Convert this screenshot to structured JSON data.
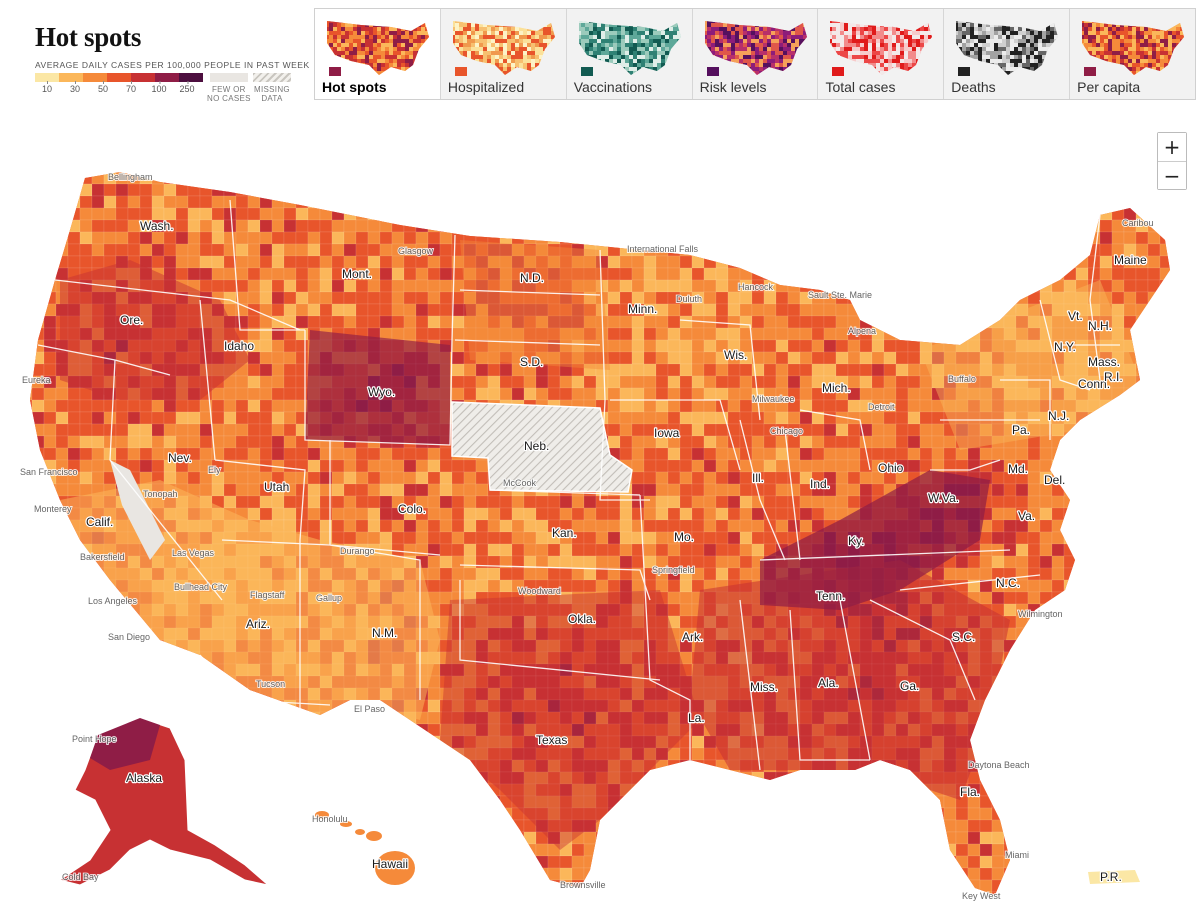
{
  "header": {
    "title": "Hot spots",
    "legend_caption": "AVERAGE DAILY CASES PER 100,000 PEOPLE IN PAST WEEK",
    "legend_colors": [
      "#fbe7a5",
      "#fbb75a",
      "#f58a3a",
      "#e8552b",
      "#c73133",
      "#8f1d46",
      "#4d0f3f"
    ],
    "legend_ticks": [
      "10",
      "30",
      "50",
      "70",
      "100",
      "250"
    ],
    "few_cases_label": [
      "FEW OR",
      "NO CASES"
    ],
    "missing_data_label": [
      "MISSING",
      "DATA"
    ]
  },
  "tabs": [
    {
      "label": "Hot spots",
      "active": true,
      "palette": [
        "#fbb75a",
        "#f58a3a",
        "#e8552b",
        "#c73133",
        "#8f1d46"
      ],
      "background": "#ffffff"
    },
    {
      "label": "Hospitalized",
      "active": false,
      "palette": [
        "#fdf3c6",
        "#fbe19a",
        "#f7c070",
        "#f0994d",
        "#e8552b"
      ],
      "background": "#f2f2f2"
    },
    {
      "label": "Vaccinations",
      "active": false,
      "palette": [
        "#dfeee8",
        "#9ccbbc",
        "#5ea899",
        "#2f8174",
        "#125b52"
      ],
      "background": "#f2f2f2"
    },
    {
      "label": "Risk levels",
      "active": false,
      "palette": [
        "#f6a15a",
        "#e0574a",
        "#b8306a",
        "#8d1c7a",
        "#55105e"
      ],
      "background": "#f2f2f2"
    },
    {
      "label": "Total cases",
      "active": false,
      "palette": [
        "#f3e9e9",
        "#f7caca",
        "#f28b8b",
        "#ec4747",
        "#e01b1b"
      ],
      "background": "#f2f2f2"
    },
    {
      "label": "Deaths",
      "active": false,
      "palette": [
        "#ececec",
        "#cfcfcf",
        "#a2a2a2",
        "#666666",
        "#222222"
      ],
      "background": "#f2f2f2"
    },
    {
      "label": "Per capita",
      "active": false,
      "palette": [
        "#fbb75a",
        "#f58a3a",
        "#e8552b",
        "#c73133",
        "#8f1d46"
      ],
      "background": "#f2f2f2"
    }
  ],
  "zoom": {
    "in_label": "+",
    "out_label": "−"
  },
  "map": {
    "colors": {
      "few": "#e9e6e2",
      "missing": "#d7d4cf",
      "border": "#ffffff"
    },
    "regions": [
      {
        "name": "contiguous-us",
        "category": "cases",
        "level": 3
      },
      {
        "name": "alaska",
        "category": "cases",
        "level": 5
      },
      {
        "name": "hawaii",
        "category": "cases",
        "level": 2
      },
      {
        "name": "puerto-rico",
        "category": "cases",
        "level": 0
      },
      {
        "name": "nebraska",
        "category": "missing",
        "level": null
      },
      {
        "name": "southeast-hotspot",
        "category": "cases",
        "level": 4
      },
      {
        "name": "tennessee-kentucky-core",
        "category": "cases",
        "level": 5
      },
      {
        "name": "wyoming-core",
        "category": "cases",
        "level": 5
      },
      {
        "name": "northwest-hotspot",
        "category": "cases",
        "level": 4
      },
      {
        "name": "southwest-region",
        "category": "cases",
        "level": 1
      },
      {
        "name": "plains-region",
        "category": "cases",
        "level": 2
      },
      {
        "name": "northeast-region",
        "category": "cases",
        "level": 1
      },
      {
        "name": "texas-hotspot",
        "category": "cases",
        "level": 4
      },
      {
        "name": "nevada-few-cases",
        "category": "few",
        "level": null
      }
    ],
    "state_labels": [
      {
        "key": "wash",
        "text": "Wash."
      },
      {
        "key": "ore",
        "text": "Ore."
      },
      {
        "key": "calif",
        "text": "Calif."
      },
      {
        "key": "idaho",
        "text": "Idaho"
      },
      {
        "key": "nev",
        "text": "Nev."
      },
      {
        "key": "mont",
        "text": "Mont."
      },
      {
        "key": "wyo",
        "text": "Wyo."
      },
      {
        "key": "utah",
        "text": "Utah"
      },
      {
        "key": "ariz",
        "text": "Ariz."
      },
      {
        "key": "colo",
        "text": "Colo."
      },
      {
        "key": "nm",
        "text": "N.M."
      },
      {
        "key": "nd",
        "text": "N.D."
      },
      {
        "key": "sd",
        "text": "S.D."
      },
      {
        "key": "neb",
        "text": "Neb."
      },
      {
        "key": "kan",
        "text": "Kan."
      },
      {
        "key": "okla",
        "text": "Okla."
      },
      {
        "key": "texas",
        "text": "Texas"
      },
      {
        "key": "minn",
        "text": "Minn."
      },
      {
        "key": "iowa",
        "text": "Iowa"
      },
      {
        "key": "mo",
        "text": "Mo."
      },
      {
        "key": "ark",
        "text": "Ark."
      },
      {
        "key": "la",
        "text": "La."
      },
      {
        "key": "wis",
        "text": "Wis."
      },
      {
        "key": "ill",
        "text": "Ill."
      },
      {
        "key": "mich",
        "text": "Mich."
      },
      {
        "key": "ind",
        "text": "Ind."
      },
      {
        "key": "ohio",
        "text": "Ohio"
      },
      {
        "key": "ky",
        "text": "Ky."
      },
      {
        "key": "tenn",
        "text": "Tenn."
      },
      {
        "key": "miss",
        "text": "Miss."
      },
      {
        "key": "ala",
        "text": "Ala."
      },
      {
        "key": "ga",
        "text": "Ga."
      },
      {
        "key": "fla",
        "text": "Fla."
      },
      {
        "key": "sc",
        "text": "S.C."
      },
      {
        "key": "nc",
        "text": "N.C."
      },
      {
        "key": "va",
        "text": "Va."
      },
      {
        "key": "wva",
        "text": "W.Va."
      },
      {
        "key": "pa",
        "text": "Pa."
      },
      {
        "key": "ny",
        "text": "N.Y."
      },
      {
        "key": "md",
        "text": "Md."
      },
      {
        "key": "del",
        "text": "Del."
      },
      {
        "key": "nj",
        "text": "N.J."
      },
      {
        "key": "conn",
        "text": "Conn."
      },
      {
        "key": "ri",
        "text": "R.I."
      },
      {
        "key": "mass",
        "text": "Mass."
      },
      {
        "key": "vt",
        "text": "Vt."
      },
      {
        "key": "nh",
        "text": "N.H."
      },
      {
        "key": "maine",
        "text": "Maine"
      },
      {
        "key": "alaska",
        "text": "Alaska"
      },
      {
        "key": "hawaii",
        "text": "Hawaii"
      },
      {
        "key": "pr",
        "text": "P.R."
      }
    ],
    "city_labels": [
      {
        "key": "bellingham",
        "text": "Bellingham"
      },
      {
        "key": "eureka",
        "text": "Eureka"
      },
      {
        "key": "sanfrancisco",
        "text": "San Francisco"
      },
      {
        "key": "monterey",
        "text": "Monterey"
      },
      {
        "key": "bakersfield",
        "text": "Bakersfield"
      },
      {
        "key": "losangeles",
        "text": "Los Angeles"
      },
      {
        "key": "sandiego",
        "text": "San Diego"
      },
      {
        "key": "lasvegas",
        "text": "Las Vegas"
      },
      {
        "key": "ely",
        "text": "Ely"
      },
      {
        "key": "tonopah",
        "text": "Tonopah"
      },
      {
        "key": "bullheadcity",
        "text": "Bullhead City"
      },
      {
        "key": "flagstaff",
        "text": "Flagstaff"
      },
      {
        "key": "gallup",
        "text": "Gallup"
      },
      {
        "key": "tucson",
        "text": "Tucson"
      },
      {
        "key": "elpaso",
        "text": "El Paso"
      },
      {
        "key": "durango",
        "text": "Durango"
      },
      {
        "key": "glasgow",
        "text": "Glasgow"
      },
      {
        "key": "internationalfalls",
        "text": "International Falls"
      },
      {
        "key": "hancock",
        "text": "Hancock"
      },
      {
        "key": "saultstemarie",
        "text": "Sault Ste. Marie"
      },
      {
        "key": "duluth",
        "text": "Duluth"
      },
      {
        "key": "alpena",
        "text": "Alpena"
      },
      {
        "key": "milwaukee",
        "text": "Milwaukee"
      },
      {
        "key": "chicago",
        "text": "Chicago"
      },
      {
        "key": "detroit",
        "text": "Detroit"
      },
      {
        "key": "buffalo",
        "text": "Buffalo"
      },
      {
        "key": "springfield",
        "text": "Springfield"
      },
      {
        "key": "woodward",
        "text": "Woodward"
      },
      {
        "key": "mccook",
        "text": "McCook"
      },
      {
        "key": "brownsville",
        "text": "Brownsville"
      },
      {
        "key": "daytonabeach",
        "text": "Daytona Beach"
      },
      {
        "key": "miami",
        "text": "Miami"
      },
      {
        "key": "keywest",
        "text": "Key West"
      },
      {
        "key": "wilmington",
        "text": "Wilmington"
      },
      {
        "key": "caribou",
        "text": "Caribou"
      },
      {
        "key": "pointhope",
        "text": "Point Hope"
      },
      {
        "key": "coldbay",
        "text": "Cold Bay"
      },
      {
        "key": "honolulu",
        "text": "Honolulu"
      }
    ]
  }
}
